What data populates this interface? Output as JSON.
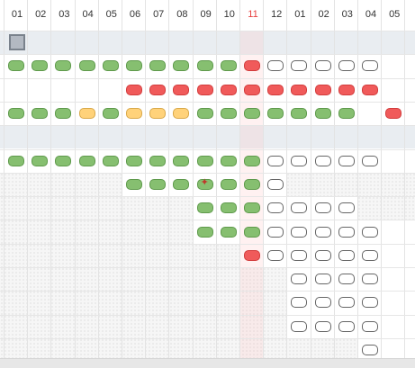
{
  "header": {
    "months": [
      "01",
      "02",
      "03",
      "04",
      "05",
      "06",
      "07",
      "08",
      "09",
      "10",
      "11",
      "12",
      "01",
      "02",
      "03",
      "04",
      "05"
    ],
    "current_index": 10,
    "current_color": "#e84040"
  },
  "legend_colors": {
    "green": "#86bf70",
    "red": "#f05a5a",
    "yellow": "#ffd27a",
    "empty": "#ffffff"
  },
  "rows": [
    {
      "type": "group",
      "selected": true,
      "cells": []
    },
    {
      "type": "task",
      "cells": [
        "green",
        "green",
        "green",
        "green",
        "green",
        "green",
        "green",
        "green",
        "green",
        "green",
        "red",
        "empty",
        "empty",
        "empty",
        "empty",
        "empty",
        null
      ]
    },
    {
      "type": "task",
      "cells": [
        null,
        null,
        null,
        null,
        null,
        "red",
        "red",
        "red",
        "red",
        "red",
        "red",
        "red",
        "red",
        "red",
        "red",
        "red",
        null
      ]
    },
    {
      "type": "task",
      "cells": [
        "green",
        "green",
        "green",
        "yellow",
        "green",
        "yellow",
        "yellow",
        "yellow",
        "green",
        "green",
        "green",
        "green",
        "green",
        "green",
        "green",
        null,
        "red"
      ]
    },
    {
      "type": "group",
      "cells": []
    },
    {
      "type": "task",
      "cells": [
        "green",
        "green",
        "green",
        "green",
        "green",
        "green",
        "green",
        "green",
        "green",
        "green",
        "green",
        "empty",
        "empty",
        "empty",
        "empty",
        "empty",
        null
      ],
      "hatch_before": 0
    },
    {
      "type": "task",
      "cells": [
        null,
        null,
        null,
        null,
        null,
        "green",
        "green",
        "green",
        "green",
        "green",
        "green",
        "empty",
        null,
        null,
        null,
        null,
        null
      ],
      "hatch_before": 5,
      "hatch_after": 12,
      "marker_col": 8
    },
    {
      "type": "task",
      "cells": [
        null,
        null,
        null,
        null,
        null,
        null,
        null,
        null,
        "green",
        "green",
        "green",
        "empty",
        "empty",
        "empty",
        "empty",
        null,
        null
      ],
      "hatch_before": 8,
      "hatch_after": 15
    },
    {
      "type": "task",
      "cells": [
        null,
        null,
        null,
        null,
        null,
        null,
        null,
        null,
        "green",
        "green",
        "green",
        "empty",
        "empty",
        "empty",
        "empty",
        "empty",
        null
      ],
      "hatch_before": 8
    },
    {
      "type": "task",
      "cells": [
        null,
        null,
        null,
        null,
        null,
        null,
        null,
        null,
        null,
        null,
        "red",
        "empty",
        "empty",
        "empty",
        "empty",
        "empty",
        null
      ],
      "hatch_before": 10
    },
    {
      "type": "task",
      "cells": [
        null,
        null,
        null,
        null,
        null,
        null,
        null,
        null,
        null,
        null,
        null,
        null,
        "empty",
        "empty",
        "empty",
        "empty",
        null
      ],
      "hatch_before": 12
    },
    {
      "type": "task",
      "cells": [
        null,
        null,
        null,
        null,
        null,
        null,
        null,
        null,
        null,
        null,
        null,
        null,
        "empty",
        "empty",
        "empty",
        "empty",
        null
      ],
      "hatch_before": 12
    },
    {
      "type": "task",
      "cells": [
        null,
        null,
        null,
        null,
        null,
        null,
        null,
        null,
        null,
        null,
        null,
        null,
        "empty",
        "empty",
        "empty",
        "empty",
        null
      ],
      "hatch_before": 12
    },
    {
      "type": "task",
      "cells": [
        null,
        null,
        null,
        null,
        null,
        null,
        null,
        null,
        null,
        null,
        null,
        null,
        null,
        null,
        null,
        "empty",
        null
      ],
      "hatch_before": 15
    }
  ]
}
